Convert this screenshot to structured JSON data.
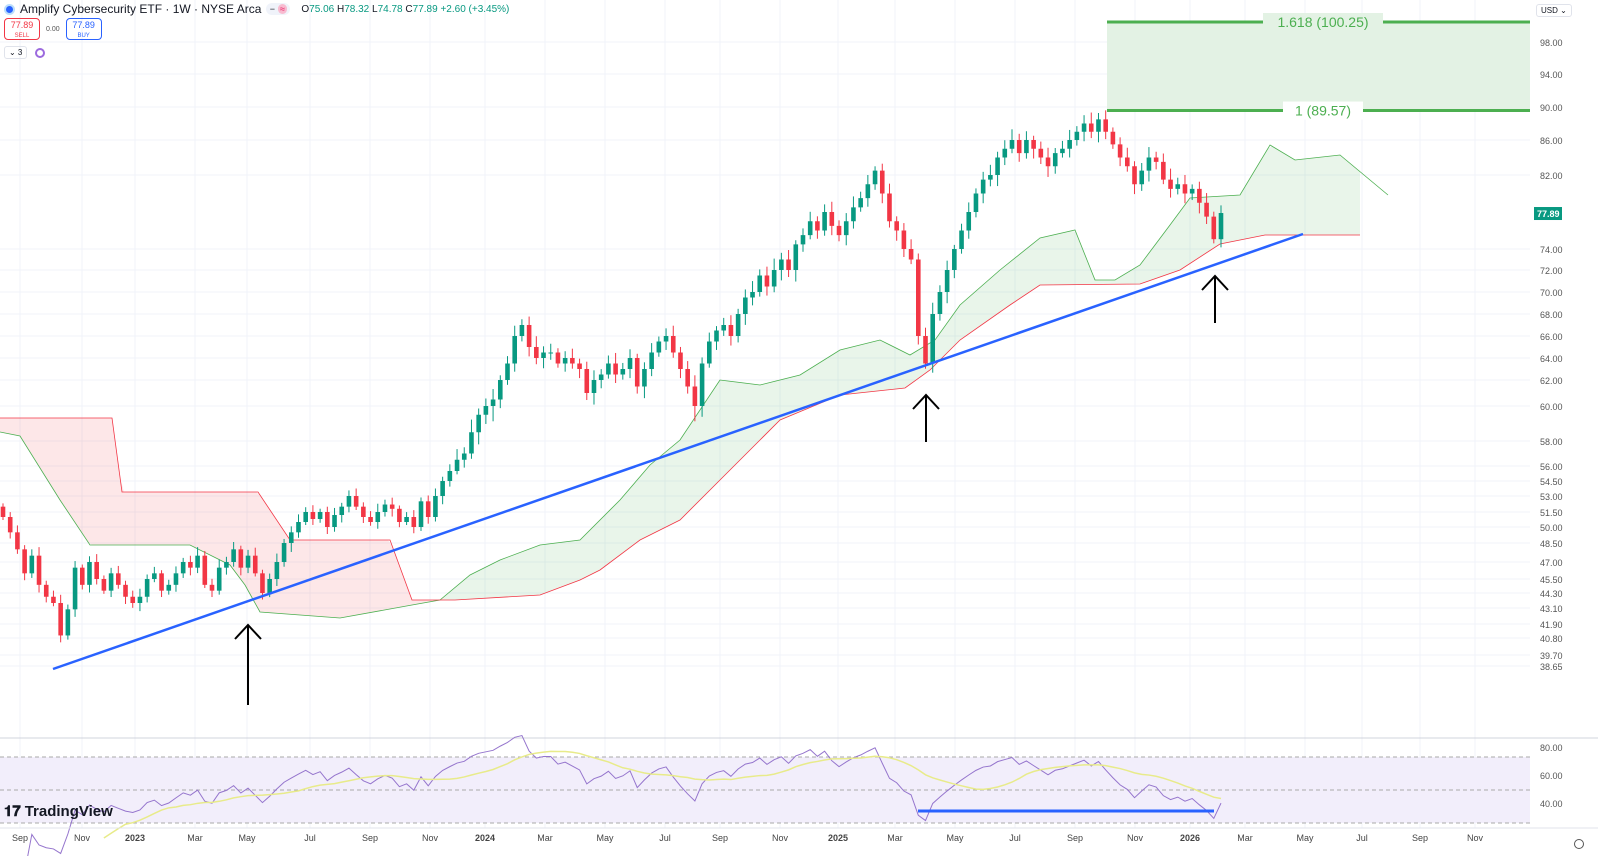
{
  "header": {
    "title": "Amplify Cybersecurity ETF · 1W · NYSE Arca",
    "o": "O",
    "o_val": "75.06",
    "h": "H",
    "h_val": "78.32",
    "l": "L",
    "l_val": "74.78",
    "c": "C",
    "c_val": "77.89",
    "change": "+2.60 (+3.45%)",
    "pill_minus": "−",
    "pill_eq": "≈"
  },
  "trade": {
    "sell_price": "77.89",
    "sell_label": "SELL",
    "spread": "0.00",
    "buy_price": "77.89",
    "buy_label": "BUY"
  },
  "indicators": {
    "count": "⌄ 3"
  },
  "currency": "USD ⌄",
  "brand": "TradingView",
  "colors": {
    "up": "#089981",
    "down": "#f23645",
    "trend": "#2962ff",
    "fib": "#4caf50",
    "rsi": "#9575cd",
    "rsi_ma": "#e8eb8a"
  },
  "chart_data": {
    "type": "candlestick",
    "title": "Amplify Cybersecurity ETF · 1W · NYSE Arca",
    "scale": "log",
    "last_price": "77.89",
    "y_ticks": [
      "98.00",
      "94.00",
      "90.00",
      "86.00",
      "82.00",
      "74.00",
      "72.00",
      "70.00",
      "68.00",
      "66.00",
      "64.00",
      "62.00",
      "60.00",
      "58.00",
      "56.00",
      "54.50",
      "53.00",
      "51.50",
      "50.00",
      "48.50",
      "47.00",
      "45.50",
      "44.30",
      "43.10",
      "41.90",
      "40.80",
      "39.70",
      "38.65"
    ],
    "x_ticks": [
      "Sep",
      "Nov",
      "2023",
      "Mar",
      "May",
      "Jul",
      "Sep",
      "Nov",
      "2024",
      "Mar",
      "May",
      "Jul",
      "Sep",
      "Nov",
      "2025",
      "Mar",
      "May",
      "Jul",
      "Sep",
      "Nov",
      "2026",
      "Mar",
      "May",
      "Jul",
      "Sep",
      "Nov"
    ],
    "closes": [
      51,
      49.5,
      48,
      46,
      47.5,
      45,
      44,
      43.5,
      41,
      43,
      46.5,
      45,
      47,
      45.5,
      44.5,
      46,
      45,
      44,
      43.5,
      44,
      45.5,
      46,
      44.5,
      45,
      46,
      47,
      46.5,
      47.5,
      45,
      44.5,
      46.5,
      47,
      48,
      46.5,
      47.5,
      46,
      44.3,
      45.5,
      47,
      48.5,
      49.5,
      50.5,
      51.5,
      50.8,
      51.5,
      50,
      51.2,
      52,
      53,
      52,
      51,
      50.5,
      51.5,
      52.2,
      51.8,
      50.5,
      51,
      50,
      52.5,
      51,
      53,
      54.5,
      55.5,
      56.5,
      57,
      58.5,
      59.5,
      60,
      60.5,
      62,
      63.5,
      66,
      67,
      65,
      64,
      64.5,
      64.5,
      63.5,
      64,
      63.5,
      63,
      61,
      62,
      62.5,
      63.5,
      62.5,
      63,
      64,
      61.5,
      63,
      64.5,
      65.5,
      66,
      64.5,
      63,
      61.5,
      60,
      63.5,
      65.5,
      66.5,
      67,
      66,
      68,
      69.5,
      70,
      71.5,
      70.5,
      72,
      73,
      72,
      74.5,
      75.5,
      77,
      76,
      78,
      76.5,
      75.5,
      77,
      78.5,
      79.5,
      81,
      82.5,
      80,
      77,
      76,
      74,
      73,
      66,
      63.5,
      68,
      70,
      72,
      74,
      76,
      78,
      80,
      81.5,
      82,
      84,
      85,
      86,
      84.5,
      86,
      85,
      84,
      83,
      84.5,
      85,
      86,
      87,
      88,
      87,
      88.5,
      87,
      85.5,
      84,
      83,
      81,
      82.5,
      84,
      83.5,
      81.5,
      80.5,
      81,
      80,
      80.5,
      79,
      77.5,
      75.06,
      77.89
    ],
    "fib_levels": [
      {
        "label": "1.618 (100.25)",
        "price": 100.25
      },
      {
        "label": "1 (89.57)",
        "price": 89.57
      }
    ],
    "rsi": {
      "period": 14,
      "ma_period": 14,
      "ticks": [
        "80.00",
        "60.00",
        "40.00"
      ],
      "bands": [
        70,
        50,
        30
      ]
    }
  }
}
